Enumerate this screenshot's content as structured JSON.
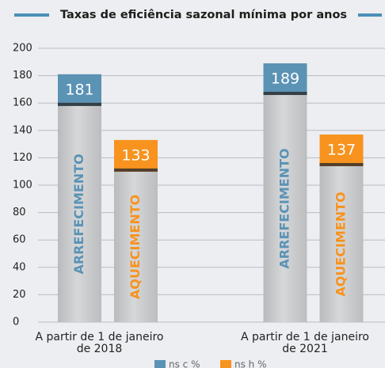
{
  "chart_data": {
    "type": "bar",
    "title": "Taxas de eficiência sazonal mínima por anos",
    "categories": [
      "A partir de 1 de janeiro de 2018",
      "A partir de 1 de janeiro de 2021"
    ],
    "series": [
      {
        "name": "ns c %",
        "color": "#5b93b5",
        "bar_label": "ARREFECIMENTO",
        "values": [
          181,
          189
        ]
      },
      {
        "name": "ns h %",
        "color": "#f7931e",
        "bar_label": "AQUECIMENTO",
        "values": [
          133,
          137
        ]
      }
    ],
    "ylim": [
      0,
      200
    ],
    "yticks": [
      0,
      20,
      40,
      60,
      80,
      100,
      120,
      140,
      160,
      180,
      200
    ],
    "grid": true
  }
}
